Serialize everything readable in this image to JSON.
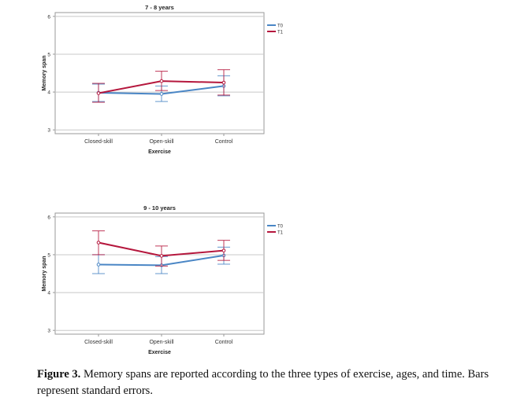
{
  "chart_data": [
    {
      "type": "line",
      "title": "7 - 8 years",
      "xlabel": "Exercise",
      "ylabel": "Memory span",
      "categories": [
        "Closed-skill",
        "Open-skill",
        "Control"
      ],
      "ylim": [
        2.9,
        6.1
      ],
      "yticks": [
        "3",
        "4",
        "5",
        "6"
      ],
      "grid": "horizontal",
      "legend": "top-right",
      "error_bars": "standard error",
      "series": [
        {
          "name": "T0",
          "color": "#4a86c5",
          "values": [
            3.98,
            3.95,
            4.16
          ],
          "low": [
            3.75,
            3.75,
            3.9
          ],
          "high": [
            4.21,
            4.16,
            4.43
          ]
        },
        {
          "name": "T1",
          "color": "#b5173d",
          "values": [
            3.97,
            4.29,
            4.25
          ],
          "low": [
            3.73,
            4.04,
            3.92
          ],
          "high": [
            4.23,
            4.55,
            4.59
          ]
        }
      ]
    },
    {
      "type": "line",
      "title": "9 - 10 years",
      "xlabel": "Exercise",
      "ylabel": "Memory span",
      "categories": [
        "Closed-skill",
        "Open-skill",
        "Control"
      ],
      "ylim": [
        2.9,
        6.1
      ],
      "yticks": [
        "3",
        "4",
        "5",
        "6"
      ],
      "grid": "horizontal",
      "legend": "top-right",
      "error_bars": "standard error",
      "series": [
        {
          "name": "T0",
          "color": "#4a86c5",
          "values": [
            4.74,
            4.72,
            4.98
          ],
          "low": [
            4.5,
            4.5,
            4.75
          ],
          "high": [
            5.0,
            4.95,
            5.2
          ]
        },
        {
          "name": "T1",
          "color": "#b5173d",
          "values": [
            5.32,
            4.97,
            5.11
          ],
          "low": [
            5.0,
            4.7,
            4.85
          ],
          "high": [
            5.63,
            5.23,
            5.38
          ]
        }
      ]
    }
  ],
  "caption": {
    "label": "Figure 3.",
    "text": " Memory spans are reported according to the three types of exercise, ages, and time. Bars represent standard errors."
  }
}
